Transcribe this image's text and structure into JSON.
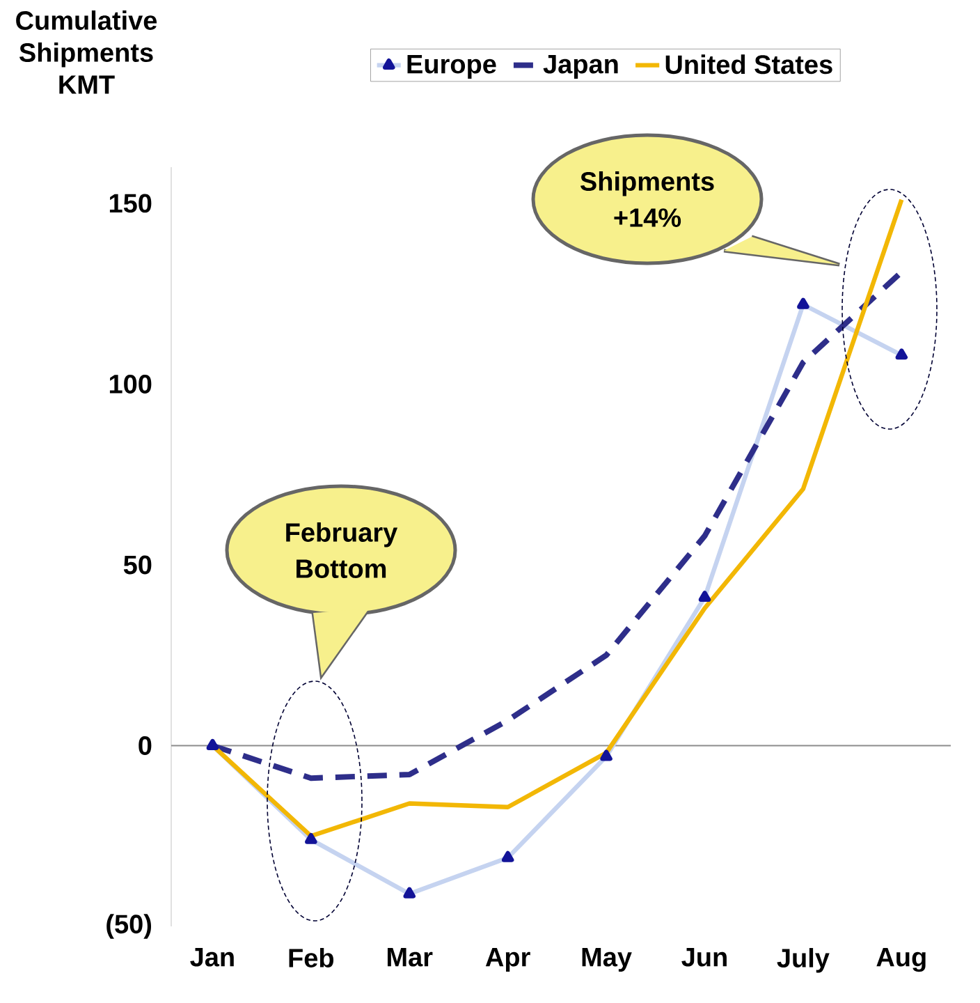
{
  "chart_data": {
    "type": "line",
    "ylabel": "Cumulative Shipments KMT",
    "categories": [
      "Jan",
      "Feb",
      "Mar",
      "Apr",
      "May",
      "Jun",
      "July",
      "Aug"
    ],
    "series": [
      {
        "name": "Europe",
        "color": "#c5d3f0",
        "marker": "triangle",
        "line_style": "solid",
        "values": [
          0,
          -26,
          -41,
          -31,
          -3,
          41,
          122,
          108
        ]
      },
      {
        "name": "Japan",
        "color": "#2e2e8a",
        "marker": "none",
        "line_style": "dashed",
        "values": [
          0,
          -9,
          -8,
          7,
          25,
          58,
          106,
          131
        ]
      },
      {
        "name": "United States",
        "color": "#f2b705",
        "marker": "none",
        "line_style": "solid",
        "values": [
          0,
          -25,
          -16,
          -17,
          -2,
          38,
          71,
          151
        ]
      }
    ],
    "ylim": [
      -50,
      160
    ],
    "yticks": [
      {
        "value": -50,
        "label": "(50)"
      },
      0,
      50,
      100,
      150
    ],
    "legend": "top",
    "annotations": [
      "February Bottom",
      "Shipments +14%"
    ]
  }
}
